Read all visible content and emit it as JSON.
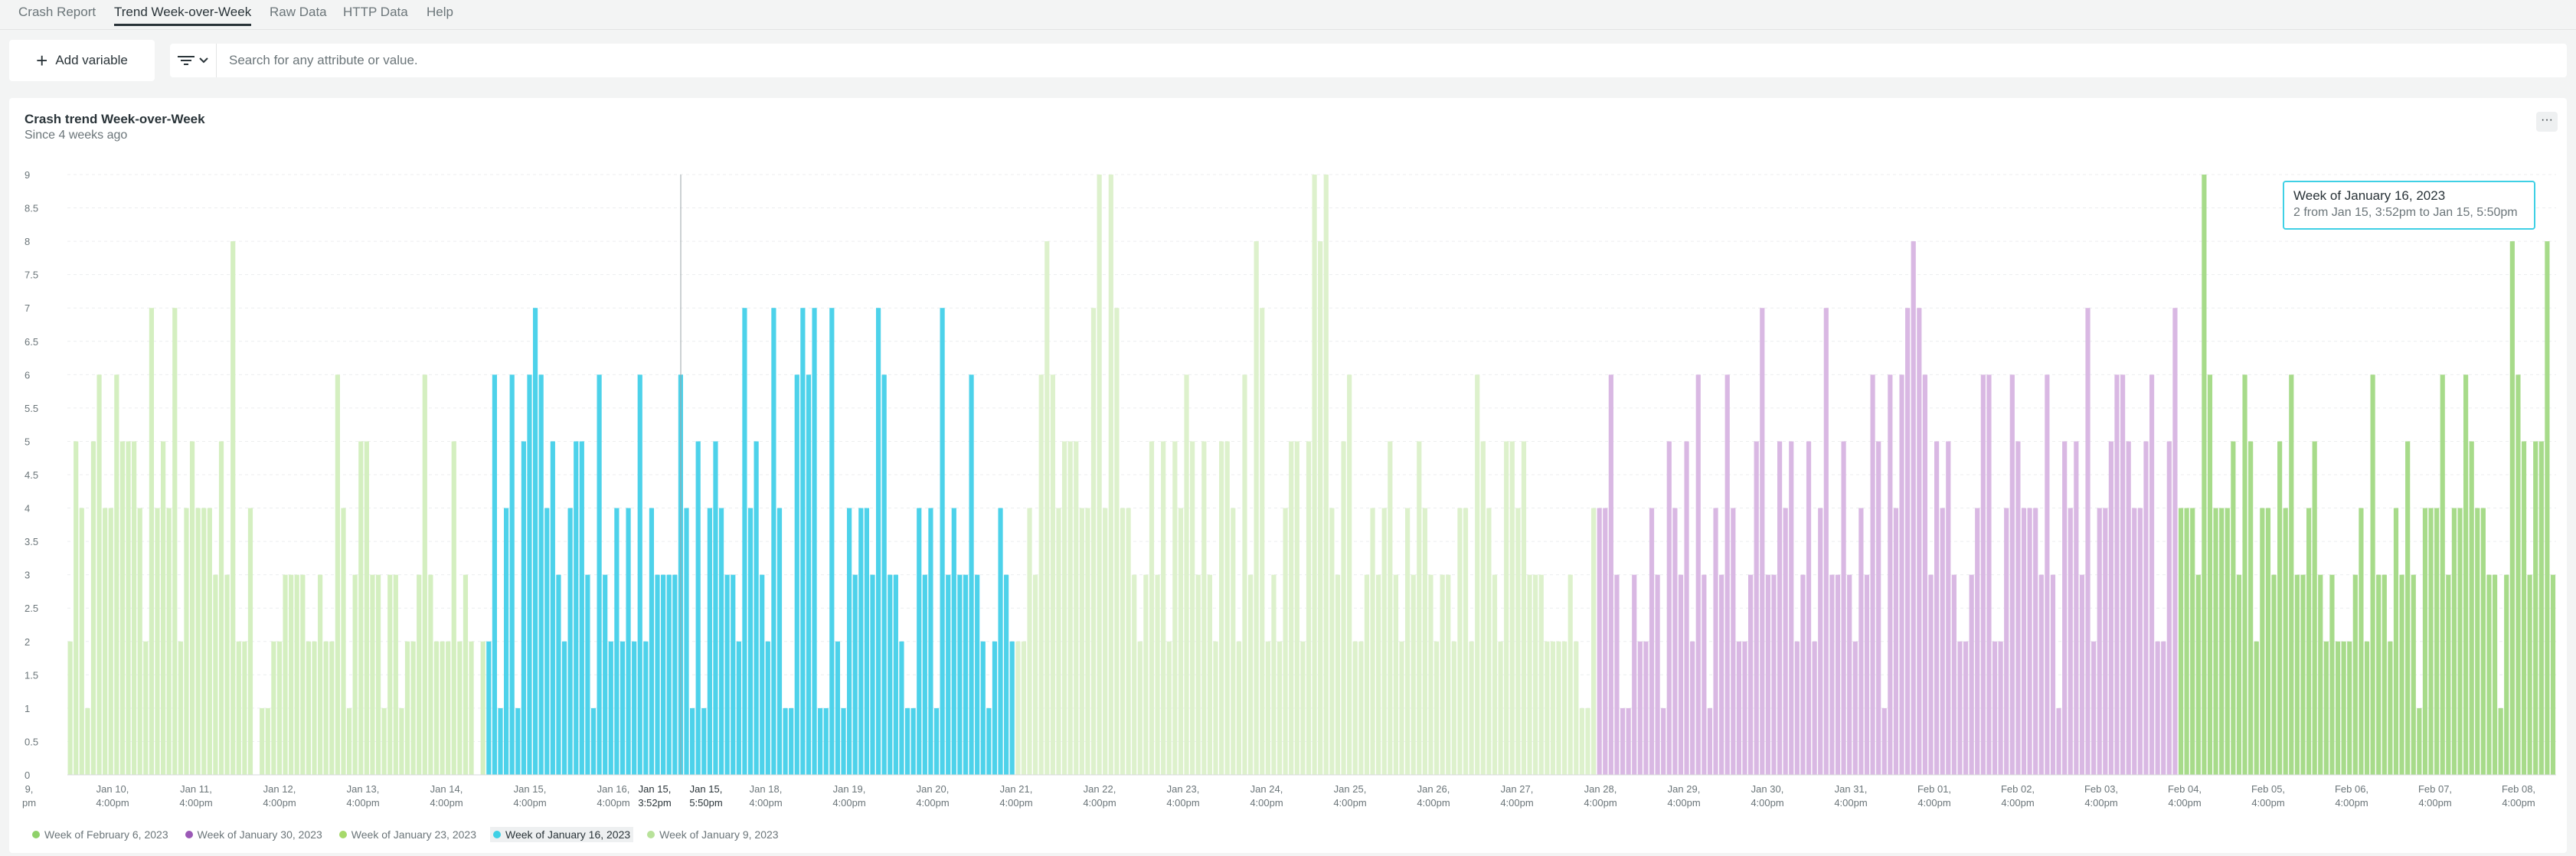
{
  "tabs": [
    "Crash Report",
    "Trend Week-over-Week",
    "Raw Data",
    "HTTP Data",
    "Help"
  ],
  "active_tab": 1,
  "toolbar": {
    "add_variable": "Add variable",
    "search_placeholder": "Search for any attribute or value."
  },
  "card": {
    "title": "Crash trend Week-over-Week",
    "subtitle": "Since 4 weeks ago",
    "menu": "···"
  },
  "tooltip": {
    "title": "Week of January 16, 2023",
    "body": "2 from Jan 15, 3:52pm to Jan 15, 5:50pm"
  },
  "legend": [
    {
      "label": "Week of February 6, 2023",
      "color": "#8fd16a"
    },
    {
      "label": "Week of January 30, 2023",
      "color": "#9b59b6"
    },
    {
      "label": "Week of January 23, 2023",
      "color": "#a6d96a"
    },
    {
      "label": "Week of January 16, 2023",
      "color": "#3fd0e5",
      "selected": true
    },
    {
      "label": "Week of January 9, 2023",
      "color": "#b8e29a"
    }
  ],
  "chart_data": {
    "type": "bar",
    "title": "Crash trend Week-over-Week",
    "ylim": [
      0,
      9
    ],
    "yticks": [
      "0",
      "0.5",
      "1",
      "1.5",
      "2",
      "2.5",
      "3",
      "3.5",
      "4",
      "4.5",
      "5",
      "5.5",
      "6",
      "6.5",
      "7",
      "7.5",
      "8",
      "8.5",
      "9"
    ],
    "xticks": [
      {
        "l1": "9,",
        "l2": "pm"
      },
      {
        "l1": "Jan 10,",
        "l2": "4:00pm"
      },
      {
        "l1": "Jan 11,",
        "l2": "4:00pm"
      },
      {
        "l1": "Jan 12,",
        "l2": "4:00pm"
      },
      {
        "l1": "Jan 13,",
        "l2": "4:00pm"
      },
      {
        "l1": "Jan 14,",
        "l2": "4:00pm"
      },
      {
        "l1": "Jan 15,",
        "l2": "4:00pm"
      },
      {
        "l1": "Jan 16,",
        "l2": "4:00pm"
      },
      {
        "l1": "Jan 15,",
        "l2": "3:52pm"
      },
      {
        "l1": "Jan 15,",
        "l2": "5:50pm"
      },
      {
        "l1": "Jan 18,",
        "l2": "4:00pm"
      },
      {
        "l1": "Jan 19,",
        "l2": "4:00pm"
      },
      {
        "l1": "Jan 20,",
        "l2": "4:00pm"
      },
      {
        "l1": "Jan 21,",
        "l2": "4:00pm"
      },
      {
        "l1": "Jan 22,",
        "l2": "4:00pm"
      },
      {
        "l1": "Jan 23,",
        "l2": "4:00pm"
      },
      {
        "l1": "Jan 24,",
        "l2": "4:00pm"
      },
      {
        "l1": "Jan 25,",
        "l2": "4:00pm"
      },
      {
        "l1": "Jan 26,",
        "l2": "4:00pm"
      },
      {
        "l1": "Jan 27,",
        "l2": "4:00pm"
      },
      {
        "l1": "Jan 28,",
        "l2": "4:00pm"
      },
      {
        "l1": "Jan 29,",
        "l2": "4:00pm"
      },
      {
        "l1": "Jan 30,",
        "l2": "4:00pm"
      },
      {
        "l1": "Jan 31,",
        "l2": "4:00pm"
      },
      {
        "l1": "Feb 01,",
        "l2": "4:00pm"
      },
      {
        "l1": "Feb 02,",
        "l2": "4:00pm"
      },
      {
        "l1": "Feb 03,",
        "l2": "4:00pm"
      },
      {
        "l1": "Feb 04,",
        "l2": "4:00pm"
      },
      {
        "l1": "Feb 05,",
        "l2": "4:00pm"
      },
      {
        "l1": "Feb 06,",
        "l2": "4:00pm"
      },
      {
        "l1": "Feb 07,",
        "l2": "4:00pm"
      },
      {
        "l1": "Feb 08,",
        "l2": "4:00pm"
      }
    ],
    "series": [
      {
        "name": "Week of January 9, 2023",
        "color": "#d4efc0",
        "values": [
          2,
          5,
          4,
          1,
          5,
          6,
          4,
          4,
          6,
          5,
          5,
          5,
          4,
          2,
          7,
          4,
          5,
          4,
          7,
          2,
          4,
          5,
          4,
          4,
          4,
          3,
          5,
          3,
          8,
          2,
          2,
          4,
          0,
          1,
          1,
          2,
          2,
          3,
          3,
          3,
          3,
          2,
          2,
          3,
          2,
          2,
          6,
          4,
          1,
          3,
          5,
          5,
          3,
          3,
          1,
          3,
          3,
          1,
          2,
          2,
          3,
          6,
          3,
          2,
          2,
          2,
          5,
          2,
          3,
          2,
          0,
          2
        ]
      },
      {
        "name": "Week of January 16, 2023",
        "color": "#4dd2ea",
        "values": [
          2,
          6,
          1,
          4,
          6,
          1,
          5,
          6,
          7,
          6,
          4,
          5,
          3,
          2,
          4,
          5,
          5,
          3,
          1,
          6,
          3,
          2,
          4,
          2,
          4,
          2,
          6,
          2,
          4,
          3,
          3,
          3,
          3,
          6,
          4,
          1,
          5,
          1,
          4,
          5,
          4,
          3,
          3,
          2,
          7,
          4,
          5,
          3,
          2,
          7,
          4,
          1,
          1,
          6,
          7,
          6,
          7,
          1,
          1,
          7,
          2,
          1,
          4,
          3,
          4,
          4,
          3,
          7,
          6,
          3,
          3,
          2,
          1,
          1,
          4,
          3,
          4,
          1,
          7,
          3,
          4,
          3,
          3,
          6,
          3,
          2,
          1,
          2,
          4,
          3,
          2
        ]
      },
      {
        "name": "Week of January 23, 2023",
        "color": "#ddf1cc",
        "values": [
          2,
          2,
          4,
          3,
          6,
          8,
          6,
          4,
          5,
          5,
          5,
          4,
          4,
          7,
          9,
          4,
          9,
          7,
          4,
          4,
          3,
          2,
          3,
          5,
          3,
          5,
          2,
          5,
          4,
          6,
          5,
          3,
          5,
          3,
          2,
          5,
          5,
          4,
          2,
          6,
          3,
          8,
          7,
          2,
          3,
          2,
          4,
          5,
          5,
          2,
          5,
          9,
          8,
          9,
          4,
          3,
          5,
          6,
          2,
          2,
          3,
          4,
          3,
          4,
          5,
          3,
          2,
          4,
          3,
          5,
          4,
          3,
          2,
          3,
          3,
          2,
          4,
          4,
          2,
          6,
          5,
          4,
          3,
          2,
          5,
          5,
          4,
          5,
          3,
          3,
          3,
          2,
          2,
          2,
          2,
          3,
          2,
          1,
          1,
          4
        ]
      },
      {
        "name": "Week of January 30, 2023",
        "color": "#d9b8e3",
        "values": [
          4,
          4,
          6,
          3,
          1,
          1,
          3,
          2,
          2,
          4,
          3,
          1,
          5,
          4,
          3,
          5,
          2,
          6,
          3,
          1,
          4,
          3,
          6,
          4,
          2,
          2,
          3,
          5,
          7,
          3,
          3,
          5,
          4,
          5,
          2,
          3,
          5,
          2,
          4,
          7,
          3,
          3,
          5,
          3,
          2,
          4,
          3,
          6,
          5,
          1,
          6,
          4,
          6,
          7,
          8,
          7,
          6,
          3,
          5,
          4,
          5,
          3,
          2,
          2,
          3,
          4,
          6,
          6,
          2,
          2,
          4,
          6,
          5,
          4,
          4,
          4,
          3,
          6,
          3,
          1,
          5,
          4,
          5,
          3,
          7,
          2,
          4,
          4,
          5,
          6,
          6,
          5,
          4,
          4,
          5,
          6,
          2,
          2,
          5,
          7
        ]
      },
      {
        "name": "Week of February 6, 2023",
        "color": "#a7db8a",
        "values": [
          4,
          4,
          4,
          3,
          9,
          6,
          4,
          4,
          4,
          5,
          3,
          6,
          5,
          2,
          4,
          4,
          3,
          5,
          4,
          6,
          3,
          3,
          4,
          5,
          3,
          2,
          3,
          2,
          2,
          2,
          3,
          4,
          2,
          6,
          3,
          3,
          2,
          4,
          3,
          5,
          3,
          1,
          4,
          4,
          4,
          6,
          3,
          4,
          4,
          6,
          5,
          4,
          4,
          3,
          3,
          1,
          3,
          8,
          6,
          5,
          3,
          5,
          5,
          8,
          3
        ]
      }
    ]
  }
}
